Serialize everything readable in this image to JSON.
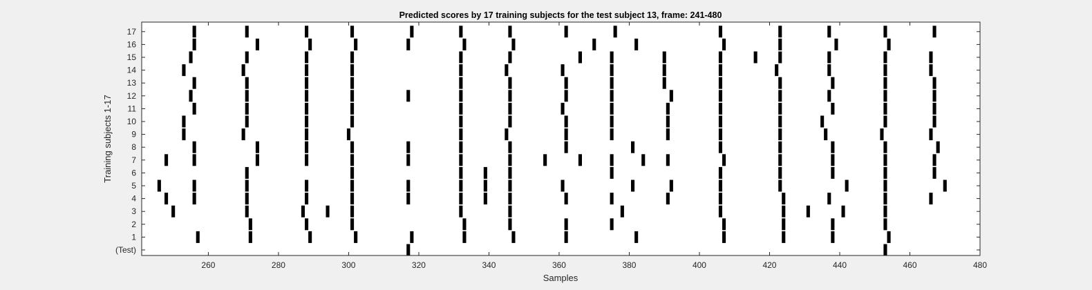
{
  "chart_data": {
    "type": "raster",
    "title": "Predicted scores by 17 training subjects for the test subject 13, frame: 241-480",
    "xlabel": "Samples",
    "ylabel": "Training subjects 1-17",
    "xlim": [
      241,
      480
    ],
    "xticks": [
      260,
      280,
      300,
      320,
      340,
      360,
      380,
      400,
      420,
      440,
      460,
      480
    ],
    "row_labels": [
      "(Test)",
      "1",
      "2",
      "3",
      "4",
      "5",
      "6",
      "7",
      "8",
      "9",
      "10",
      "11",
      "12",
      "13",
      "14",
      "15",
      "16",
      "17"
    ],
    "rows": [
      {
        "label": "(Test)",
        "events": [
          317,
          453
        ]
      },
      {
        "label": "1",
        "events": [
          257,
          272,
          289,
          302,
          318,
          333,
          347,
          362,
          382,
          407,
          424,
          438,
          454
        ]
      },
      {
        "label": "2",
        "events": [
          272,
          288,
          301,
          333,
          346,
          362,
          375,
          407,
          424,
          438,
          453
        ]
      },
      {
        "label": "3",
        "events": [
          250,
          271,
          287,
          294,
          301,
          332,
          346,
          378,
          406,
          424,
          431,
          441,
          453
        ]
      },
      {
        "label": "4",
        "events": [
          248,
          256,
          271,
          288,
          301,
          317,
          332,
          339,
          346,
          362,
          375,
          391,
          406,
          424,
          437,
          453,
          466
        ]
      },
      {
        "label": "5",
        "events": [
          246,
          256,
          271,
          288,
          301,
          317,
          332,
          339,
          346,
          361,
          381,
          392,
          406,
          423,
          442,
          453,
          470
        ]
      },
      {
        "label": "6",
        "events": [
          271,
          301,
          332,
          339,
          346,
          375,
          406,
          423,
          438,
          453,
          467
        ]
      },
      {
        "label": "7",
        "events": [
          248,
          256,
          274,
          288,
          301,
          317,
          332,
          346,
          356,
          366,
          375,
          384,
          391,
          407,
          423,
          438,
          453,
          467
        ]
      },
      {
        "label": "8",
        "events": [
          256,
          274,
          288,
          301,
          317,
          332,
          346,
          362,
          381,
          406,
          423,
          438,
          453,
          468
        ]
      },
      {
        "label": "9",
        "events": [
          253,
          270,
          288,
          300,
          332,
          345,
          362,
          375,
          391,
          406,
          423,
          436,
          452,
          466
        ]
      },
      {
        "label": "10",
        "events": [
          253,
          271,
          288,
          301,
          332,
          346,
          362,
          375,
          391,
          406,
          423,
          435,
          453,
          467
        ]
      },
      {
        "label": "11",
        "events": [
          256,
          271,
          288,
          301,
          332,
          346,
          361,
          375,
          391,
          406,
          423,
          438,
          453,
          467
        ]
      },
      {
        "label": "12",
        "events": [
          255,
          271,
          288,
          301,
          317,
          332,
          346,
          362,
          375,
          392,
          406,
          423,
          437,
          453,
          467
        ]
      },
      {
        "label": "13",
        "events": [
          256,
          271,
          288,
          301,
          332,
          346,
          362,
          375,
          390,
          406,
          423,
          438,
          453,
          467
        ]
      },
      {
        "label": "14",
        "events": [
          253,
          270,
          288,
          301,
          332,
          345,
          361,
          375,
          390,
          406,
          422,
          437,
          453,
          466
        ]
      },
      {
        "label": "15",
        "events": [
          255,
          271,
          288,
          301,
          332,
          346,
          366,
          375,
          390,
          406,
          416,
          423,
          437,
          453,
          466
        ]
      },
      {
        "label": "16",
        "events": [
          256,
          274,
          289,
          302,
          317,
          333,
          347,
          370,
          382,
          407,
          423,
          439,
          454
        ]
      },
      {
        "label": "17",
        "events": [
          256,
          271,
          288,
          301,
          318,
          332,
          346,
          362,
          376,
          406,
          423,
          437,
          453,
          467
        ]
      }
    ],
    "grid": false,
    "colors": {
      "background": "#f0f0f0",
      "plot_bg": "#ffffff",
      "mark": "#000000",
      "axis": "#262626"
    }
  }
}
